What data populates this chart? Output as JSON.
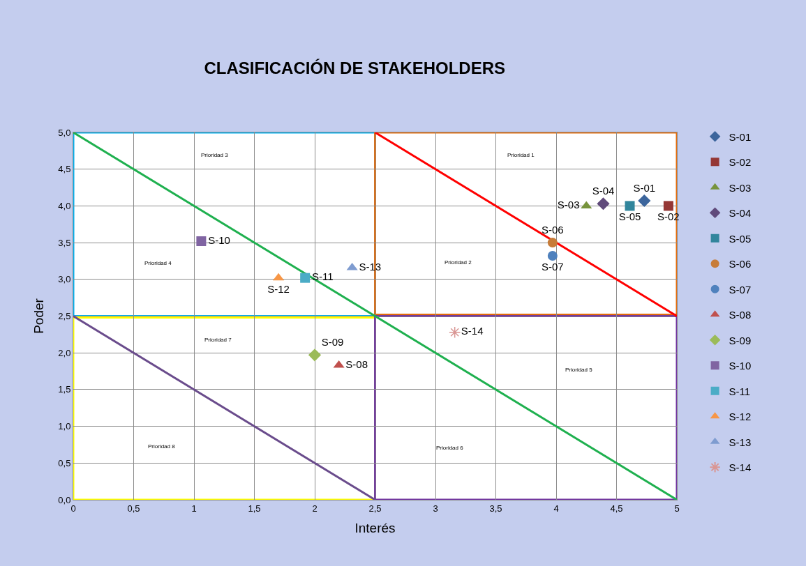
{
  "chart_data": {
    "type": "scatter",
    "title": "CLASIFICACIÓN DE STAKEHOLDERS",
    "xlabel": "Interés",
    "ylabel": "Poder",
    "xlim": [
      0,
      5
    ],
    "ylim": [
      0,
      5
    ],
    "xticks": [
      0,
      {
        "value": 0.5,
        "label": "0,5"
      },
      1,
      {
        "value": 1.5,
        "label": "1,5"
      },
      2,
      {
        "value": 2.5,
        "label": "2,5"
      },
      3,
      {
        "value": 3.5,
        "label": "3,5"
      },
      4,
      {
        "value": 4.5,
        "label": "4,5"
      },
      5
    ],
    "yticks": [
      {
        "value": 0,
        "label": "0,0"
      },
      {
        "value": 0.5,
        "label": "0,5"
      },
      {
        "value": 1,
        "label": "1,0"
      },
      {
        "value": 1.5,
        "label": "1,5"
      },
      {
        "value": 2,
        "label": "2,0"
      },
      {
        "value": 2.5,
        "label": "2,5"
      },
      {
        "value": 3,
        "label": "3,0"
      },
      {
        "value": 3.5,
        "label": "3,5"
      },
      {
        "value": 4,
        "label": "4,0"
      },
      {
        "value": 4.5,
        "label": "4,5"
      },
      {
        "value": 5,
        "label": "5,0"
      }
    ],
    "grid": true,
    "legend": "right",
    "series": [
      {
        "name": "S-01",
        "color": "#3c659c",
        "marker": "diamond",
        "x": [
          4.73
        ],
        "values": [
          4.07
        ]
      },
      {
        "name": "S-02",
        "color": "#953735",
        "marker": "square",
        "x": [
          4.93
        ],
        "values": [
          4.0
        ]
      },
      {
        "name": "S-03",
        "color": "#77933c",
        "marker": "triangle",
        "x": [
          4.25
        ],
        "values": [
          4.0
        ]
      },
      {
        "name": "S-04",
        "color": "#604a7b",
        "marker": "diamond",
        "x": [
          4.39
        ],
        "values": [
          4.03
        ]
      },
      {
        "name": "S-05",
        "color": "#31859c",
        "marker": "square",
        "x": [
          4.61
        ],
        "values": [
          4.0
        ]
      },
      {
        "name": "S-06",
        "color": "#c77c38",
        "marker": "circle",
        "x": [
          3.97
        ],
        "values": [
          3.5
        ]
      },
      {
        "name": "S-07",
        "color": "#4f81bd",
        "marker": "circle",
        "x": [
          3.97
        ],
        "values": [
          3.32
        ]
      },
      {
        "name": "S-08",
        "color": "#c0504d",
        "marker": "triangle",
        "x": [
          2.2
        ],
        "values": [
          1.83
        ]
      },
      {
        "name": "S-09",
        "color": "#9bbb59",
        "marker": "diamond",
        "x": [
          2.0
        ],
        "values": [
          1.97
        ]
      },
      {
        "name": "S-10",
        "color": "#8064a2",
        "marker": "square",
        "x": [
          1.06
        ],
        "values": [
          3.52
        ]
      },
      {
        "name": "S-11",
        "color": "#4bacc6",
        "marker": "square",
        "x": [
          1.92
        ],
        "values": [
          3.02
        ]
      },
      {
        "name": "S-12",
        "color": "#f79646",
        "marker": "triangle",
        "x": [
          1.7
        ],
        "values": [
          3.02
        ]
      },
      {
        "name": "S-13",
        "color": "#7f9cd0",
        "marker": "triangle",
        "x": [
          2.31
        ],
        "values": [
          3.16
        ]
      },
      {
        "name": "S-14",
        "color": "#d99694",
        "marker": "cross",
        "x": [
          3.16
        ],
        "values": [
          2.28
        ]
      },
      {
        "type": "line",
        "color": "#1fb04f",
        "marker": "none",
        "x": [
          0,
          5
        ],
        "values": [
          5,
          0
        ]
      },
      {
        "type": "line",
        "color": "#ff0000",
        "marker": "none",
        "x": [
          2.5,
          5
        ],
        "values": [
          5,
          2.5
        ]
      },
      {
        "type": "line",
        "color": "#6a4c8c",
        "marker": "none",
        "x": [
          0,
          2.5
        ],
        "values": [
          2.5,
          0
        ]
      }
    ],
    "annotations": [
      "Prioridad 1",
      "Prioridad 2",
      "Prioridad 3",
      "Prioridad 4",
      "Prioridad 5",
      "Prioridad 6",
      "Prioridad 7",
      "Prioridad 8"
    ]
  }
}
